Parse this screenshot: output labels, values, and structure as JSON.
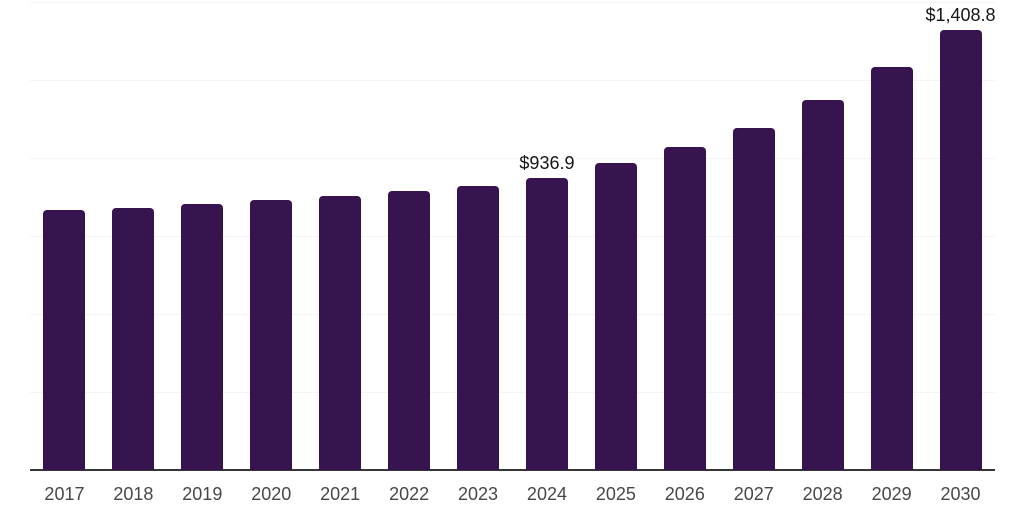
{
  "chart_data": {
    "type": "bar",
    "title": "",
    "xlabel": "",
    "ylabel": "",
    "categories": [
      "2017",
      "2018",
      "2019",
      "2020",
      "2021",
      "2022",
      "2023",
      "2024",
      "2025",
      "2026",
      "2027",
      "2028",
      "2029",
      "2030"
    ],
    "values": [
      832.1,
      838.5,
      853.5,
      865.4,
      877.2,
      893.3,
      909.3,
      936.9,
      983.0,
      1034.3,
      1097.7,
      1185.9,
      1290.7,
      1408.8
    ],
    "data_labels": {
      "2024": "$936.9",
      "2030": "$1,408.8"
    },
    "ylim": [
      0,
      1500
    ],
    "gridline_values": [
      250,
      500,
      750,
      1000,
      1250,
      1500
    ],
    "grid": "horizontal-only",
    "legend": "none",
    "colors": {
      "bar": "#371450",
      "gridline": "#f4f4f4",
      "axis_line": "#363636",
      "tick_label": "#484848",
      "data_label": "#161616"
    }
  }
}
